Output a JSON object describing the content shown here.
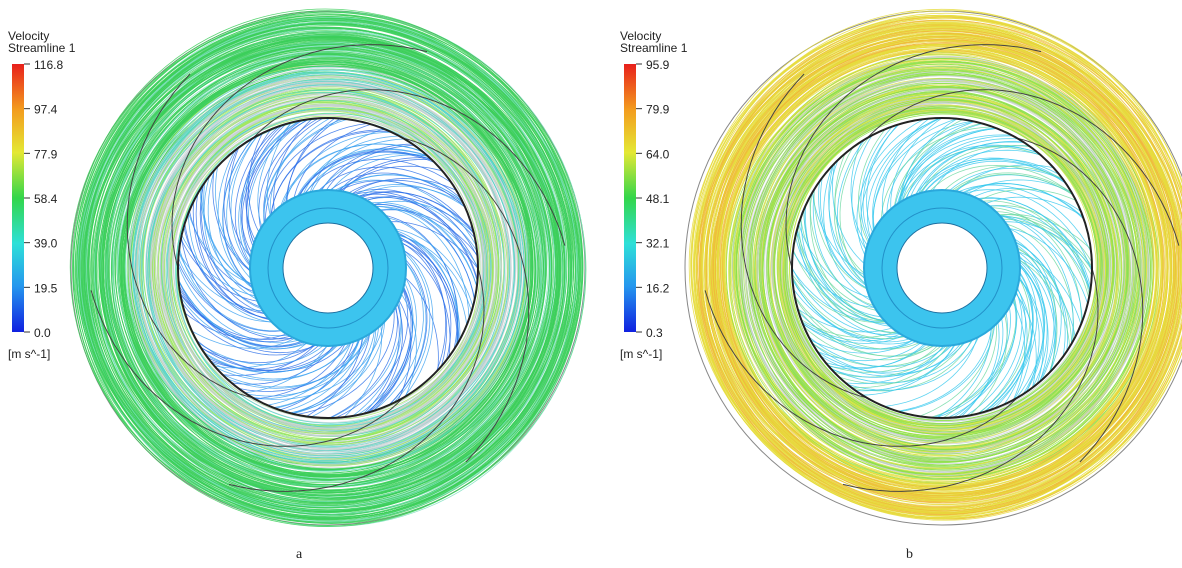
{
  "panels": [
    {
      "legend": {
        "title": "Velocity",
        "subtitle": "Streamline 1",
        "ticks": [
          "116.8",
          "97.4",
          "77.9",
          "58.4",
          "39.0",
          "19.5",
          "0.0"
        ],
        "unit": "[m s^-1]"
      },
      "caption": "a"
    },
    {
      "legend": {
        "title": "Velocity",
        "subtitle": "Streamline 1",
        "ticks": [
          "95.9",
          "79.9",
          "64.0",
          "48.1",
          "32.1",
          "16.2",
          "0.3"
        ],
        "unit": "[m s^-1]"
      },
      "caption": "b"
    }
  ]
}
